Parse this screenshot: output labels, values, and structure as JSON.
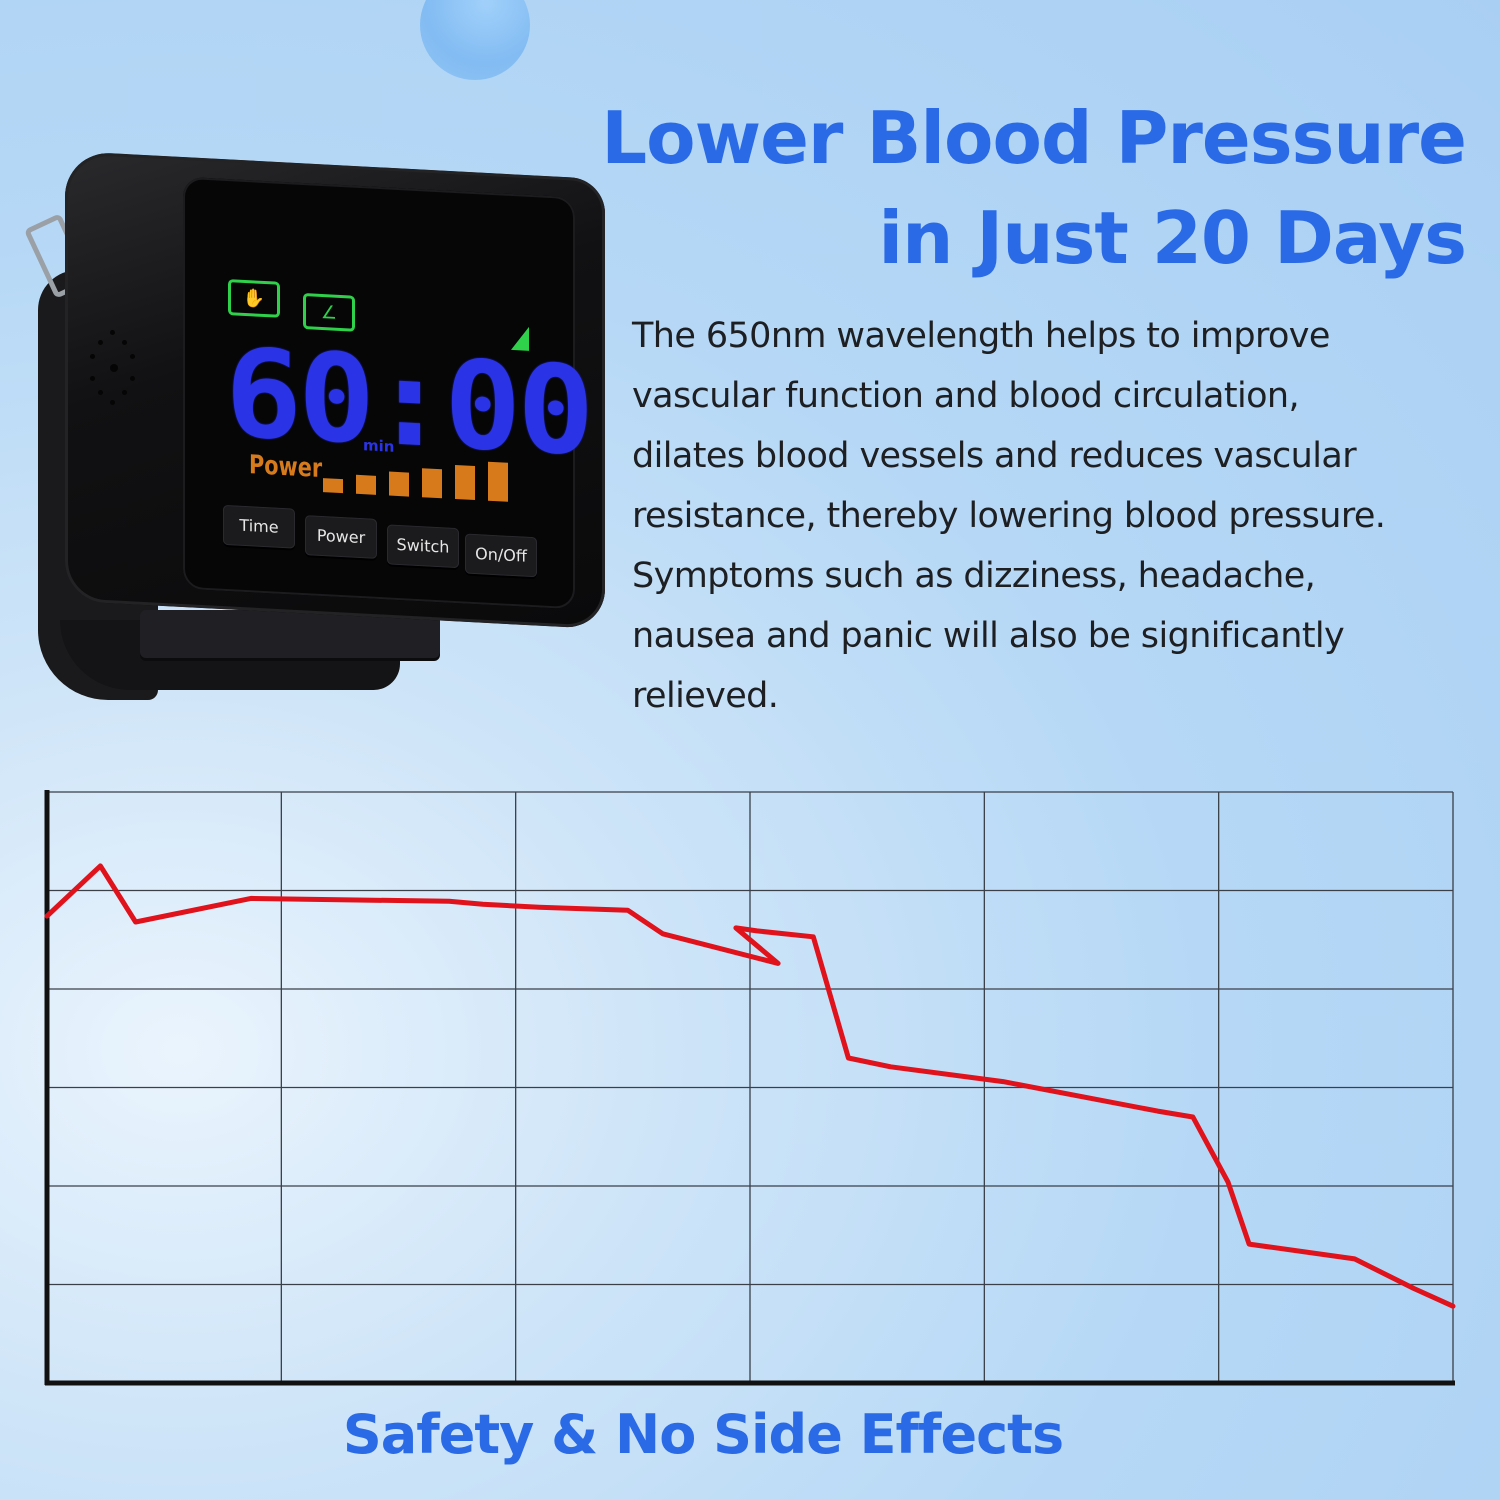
{
  "headline": {
    "line1": "Lower Blood Pressure",
    "line2": "in Just 20 Days"
  },
  "description": [
    "The 650nm wavelength helps to improve",
    "vascular function and blood circulation,",
    "dilates blood vessels and reduces vascular",
    "resistance, thereby lowering blood pressure.",
    "Symptoms such as dizziness, headache,",
    "nausea and panic will also be significantly",
    "relieved."
  ],
  "device": {
    "timer": "60:00",
    "timer_unit": "min",
    "power_label": "Power",
    "power_level": 6,
    "power_max": 6,
    "buttons": [
      "Time",
      "Power",
      "Switch",
      "On/Off"
    ],
    "mode_icons": [
      "hand-icon",
      "foot-icon"
    ],
    "colors": {
      "timer": "#2a33e6",
      "power": "#d67a1c",
      "mode": "#2fd04a"
    }
  },
  "footer": {
    "tagline": "Safety & No Side Effects"
  },
  "chart_data": {
    "type": "line",
    "title": "",
    "xlabel": "",
    "ylabel": "",
    "grid": true,
    "grid_columns": 6,
    "grid_rows": 6,
    "xlim": [
      0,
      1
    ],
    "ylim": [
      0,
      1
    ],
    "series": [
      {
        "color": "#e0121b",
        "x": [
          0.0,
          0.038,
          0.063,
          0.145,
          0.286,
          0.31,
          0.35,
          0.413,
          0.438,
          0.52,
          0.49,
          0.505,
          0.545,
          0.57,
          0.6,
          0.68,
          0.79,
          0.815,
          0.84,
          0.855,
          0.93,
          0.972,
          1.0
        ],
        "y": [
          0.79,
          0.875,
          0.78,
          0.82,
          0.815,
          0.81,
          0.805,
          0.8,
          0.76,
          0.71,
          0.77,
          0.765,
          0.755,
          0.55,
          0.535,
          0.51,
          0.46,
          0.45,
          0.34,
          0.235,
          0.21,
          0.16,
          0.13
        ]
      }
    ]
  }
}
